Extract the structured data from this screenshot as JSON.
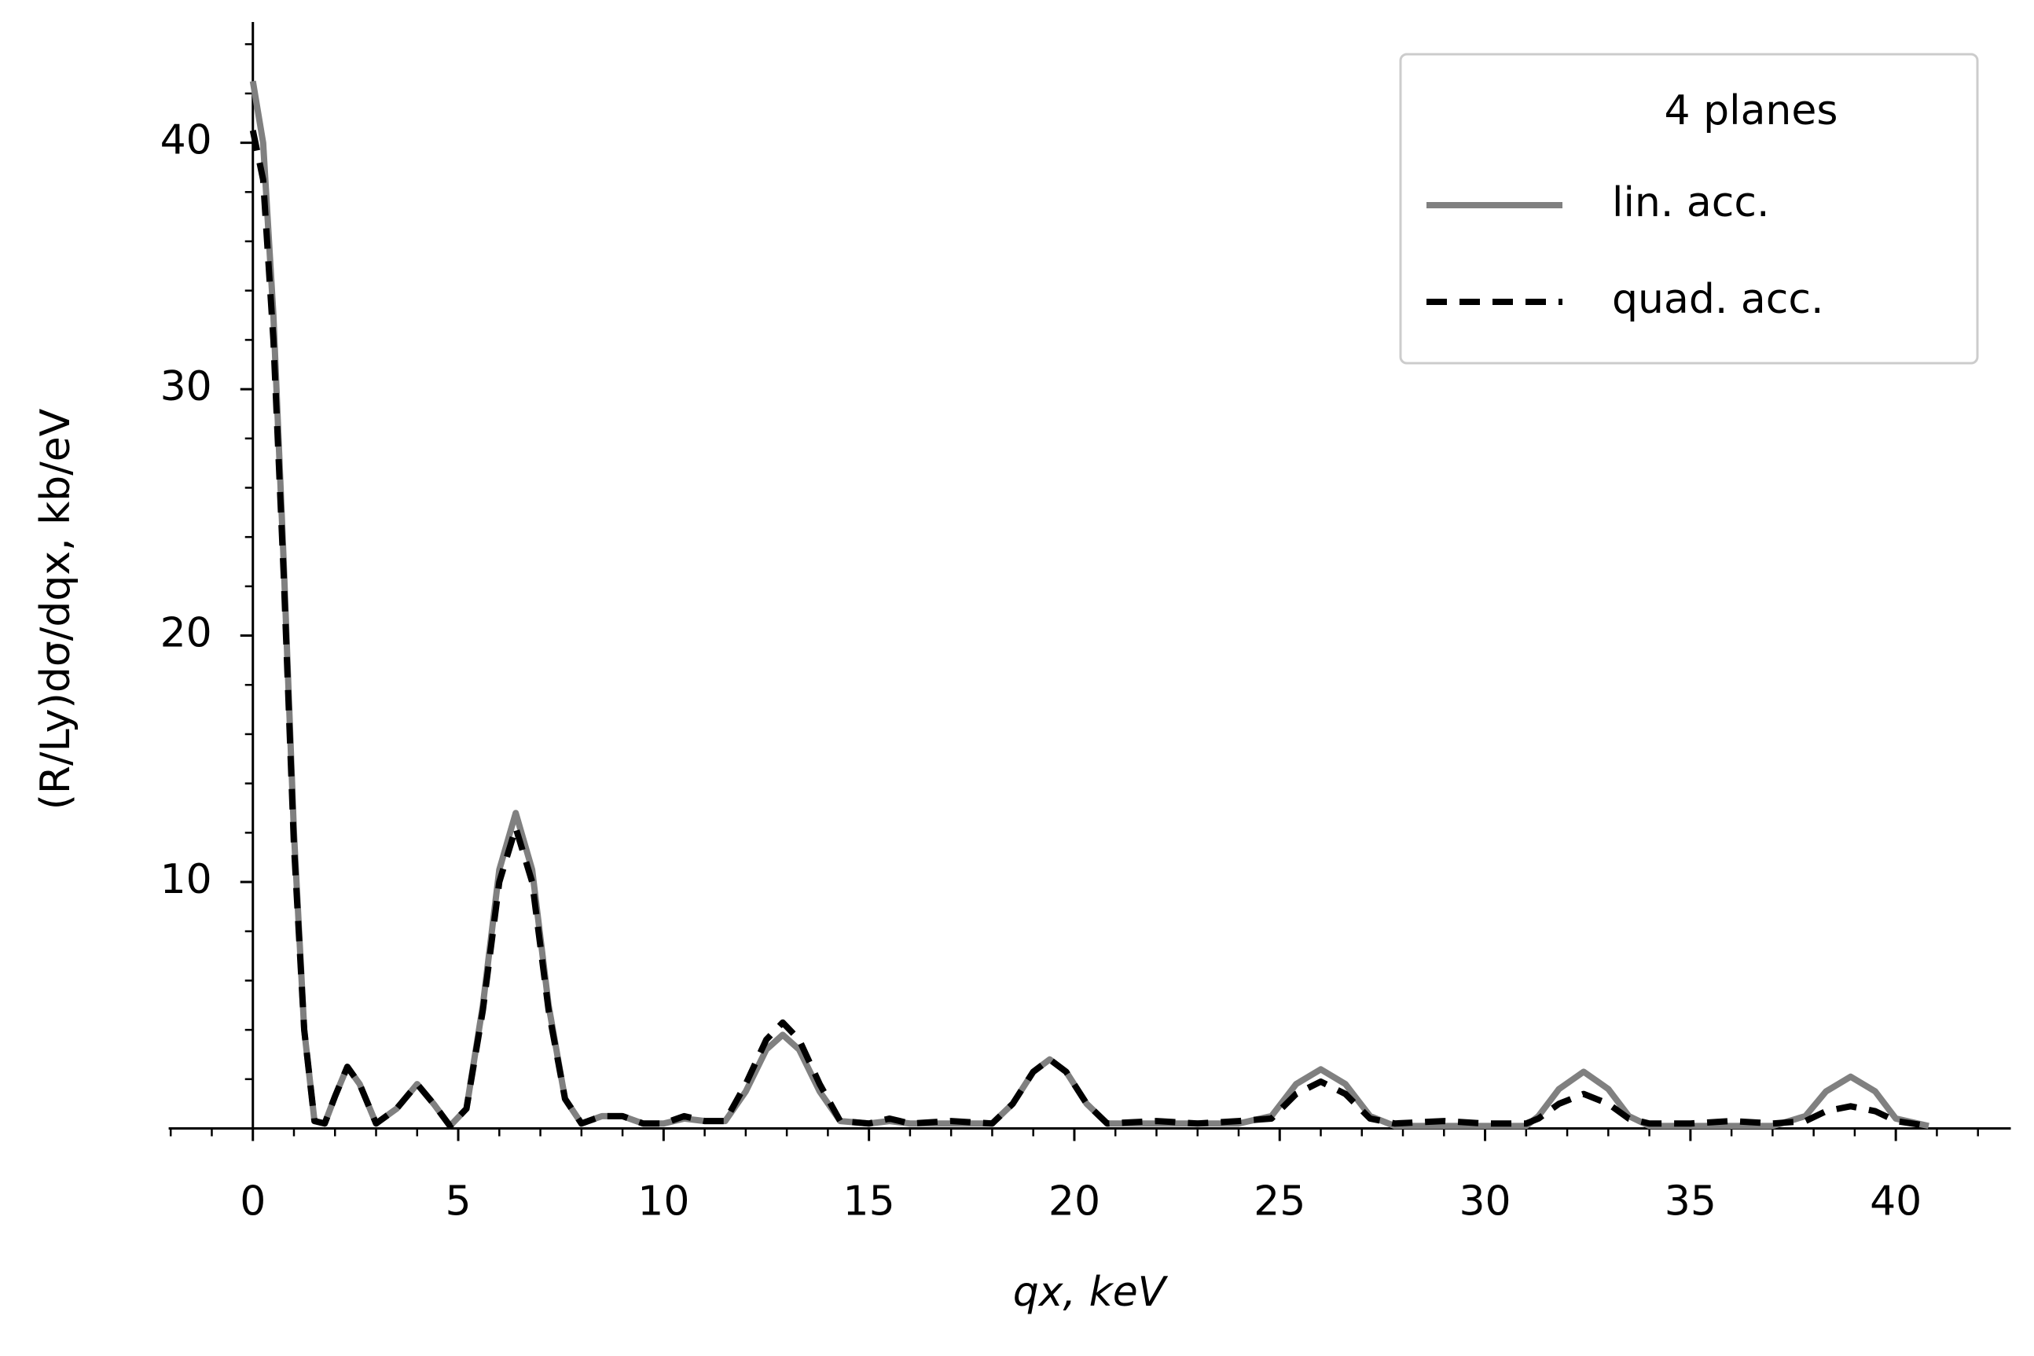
{
  "chart_data": {
    "type": "line",
    "xlabel": "qx, keV",
    "ylabel": "(R/Ly)dσ/dqx, kb/eV",
    "legend_title": "4 planes",
    "legend": "upper right",
    "x": [
      0,
      0.25,
      0.5,
      0.75,
      1,
      1.25,
      1.5,
      1.75,
      2,
      2.3,
      2.6,
      3,
      3.5,
      4,
      4.4,
      4.8,
      5.2,
      5.6,
      6,
      6.4,
      6.8,
      7.2,
      7.6,
      8,
      8.5,
      9,
      9.5,
      10,
      10.5,
      11,
      11.5,
      12,
      12.5,
      12.9,
      13.3,
      13.8,
      14.3,
      15,
      15.5,
      16,
      17,
      18,
      18.5,
      19,
      19.4,
      19.8,
      20.3,
      20.8,
      22,
      23,
      24,
      24.8,
      25.4,
      26,
      26.6,
      27.2,
      27.8,
      29,
      30,
      31,
      31.3,
      31.8,
      32.4,
      33,
      33.5,
      34,
      35,
      36,
      37,
      37.8,
      38.3,
      38.9,
      39.5,
      40,
      40.8
    ],
    "series": [
      {
        "name": "lin. acc.",
        "color": "#808080",
        "dash": false,
        "values": [
          42.5,
          40,
          33,
          23,
          12,
          4,
          0.3,
          0.2,
          1.3,
          2.5,
          1.8,
          0.2,
          0.8,
          1.8,
          1.0,
          0.1,
          0.8,
          5,
          10.5,
          12.8,
          10.5,
          5,
          1.2,
          0.2,
          0.5,
          0.5,
          0.2,
          0.2,
          0.4,
          0.3,
          0.3,
          1.5,
          3.2,
          3.8,
          3.2,
          1.5,
          0.3,
          0.2,
          0.3,
          0.2,
          0.2,
          0.2,
          1.0,
          2.3,
          2.8,
          2.3,
          1.0,
          0.2,
          0.2,
          0.2,
          0.2,
          0.5,
          1.8,
          2.4,
          1.8,
          0.5,
          0.1,
          0.1,
          0.1,
          0.1,
          0.5,
          1.6,
          2.3,
          1.6,
          0.5,
          0.1,
          0.1,
          0.1,
          0.1,
          0.5,
          1.5,
          2.1,
          1.5,
          0.4,
          0.1
        ]
      },
      {
        "name": "quad. acc.",
        "color": "#000000",
        "dash": true,
        "values": [
          40.5,
          38.5,
          32,
          22.5,
          11.5,
          4,
          0.3,
          0.2,
          1.3,
          2.5,
          1.8,
          0.2,
          0.8,
          1.8,
          1.0,
          0.1,
          0.8,
          4.8,
          10,
          12.2,
          10,
          4.8,
          1.2,
          0.2,
          0.5,
          0.5,
          0.2,
          0.2,
          0.5,
          0.3,
          0.3,
          1.8,
          3.6,
          4.3,
          3.6,
          1.8,
          0.3,
          0.2,
          0.4,
          0.2,
          0.3,
          0.2,
          1.0,
          2.3,
          2.8,
          2.3,
          1.0,
          0.2,
          0.3,
          0.2,
          0.3,
          0.4,
          1.4,
          1.9,
          1.4,
          0.4,
          0.2,
          0.3,
          0.2,
          0.2,
          0.4,
          1.0,
          1.4,
          1.0,
          0.4,
          0.2,
          0.2,
          0.3,
          0.2,
          0.3,
          0.7,
          0.9,
          0.7,
          0.3,
          0.1
        ]
      }
    ],
    "xlim": [
      -2.05,
      42.8
    ],
    "ylim": [
      0,
      44.9
    ],
    "xticks": [
      0,
      5,
      10,
      15,
      20,
      25,
      30,
      35,
      40
    ],
    "yticks": [
      10,
      20,
      30,
      40
    ],
    "xticks_minor": [
      -2,
      -1,
      1,
      2,
      3,
      4,
      6,
      7,
      8,
      9,
      11,
      12,
      13,
      14,
      16,
      17,
      18,
      19,
      21,
      22,
      23,
      24,
      26,
      27,
      28,
      29,
      31,
      32,
      33,
      34,
      36,
      37,
      38,
      39,
      41,
      42
    ],
    "yticks_minor": [
      2,
      4,
      6,
      8,
      12,
      14,
      16,
      18,
      22,
      24,
      26,
      28,
      32,
      34,
      36,
      38,
      42,
      44
    ],
    "grid": false
  }
}
